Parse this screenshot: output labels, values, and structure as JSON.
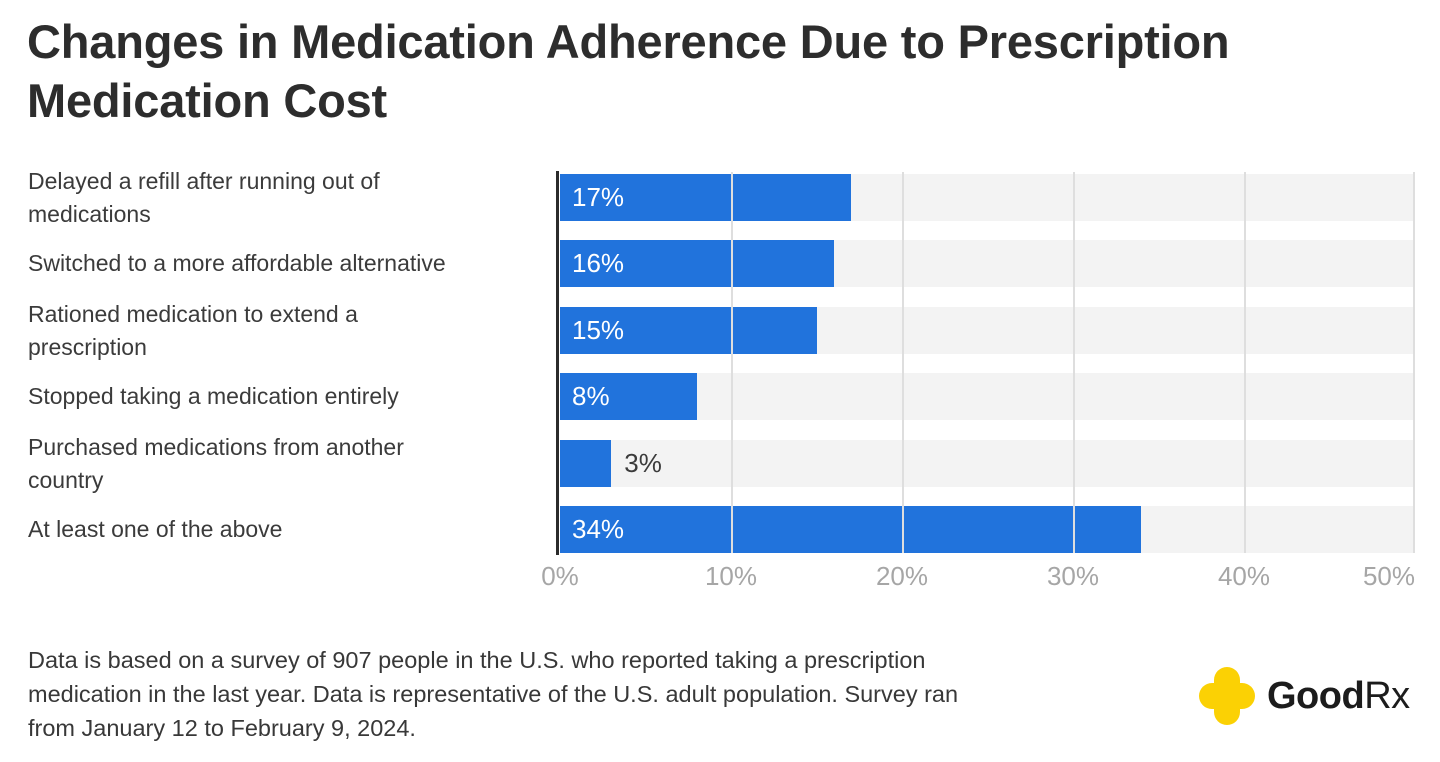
{
  "title": "Changes in Medication Adherence Due to Prescription\nMedication Cost",
  "chart_data": {
    "type": "bar",
    "orientation": "horizontal",
    "title": "Changes in Medication Adherence Due to Prescription Medication Cost",
    "categories": [
      "Delayed a refill after running out of\nmedications",
      "Switched to a more affordable alternative",
      "Rationed medication to extend a\nprescription",
      "Stopped taking a medication entirely",
      "Purchased medications from another\ncountry",
      "At least one of the above"
    ],
    "values": [
      17,
      16,
      15,
      8,
      3,
      34
    ],
    "value_labels": [
      "17%",
      "16%",
      "15%",
      "8%",
      "3%",
      "34%"
    ],
    "xlabel": "",
    "ylabel": "",
    "xlim": [
      0,
      50
    ],
    "x_ticks": [
      "0%",
      "10%",
      "20%",
      "30%",
      "40%",
      "50%"
    ],
    "grid": true,
    "legend": false,
    "bar_color": "#2173dc",
    "track_color": "#f3f3f3",
    "gridline_color": "#dedede",
    "axis_line_color": "#2b2b2b",
    "tick_label_color": "#a6a6a6"
  },
  "footer": {
    "note": "Data is based on a survey of 907 people in the U.S. who reported taking a prescription\nmedication in the last year. Data is representative of the U.S. adult population. Survey ran\nfrom January 12 to February 9, 2024.",
    "logo": {
      "brand_bold": "Good",
      "brand_regular": "Rx",
      "icon": "goodrx-cross-icon",
      "icon_color": "#fbd104"
    }
  }
}
